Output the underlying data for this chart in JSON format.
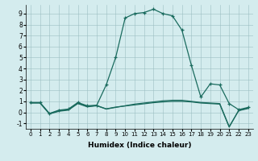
{
  "xlabel": "Humidex (Indice chaleur)",
  "background_color": "#d4ecee",
  "line_color": "#1a6b5e",
  "xlim": [
    -0.5,
    23.5
  ],
  "ylim": [
    -1.5,
    9.8
  ],
  "xticks": [
    0,
    1,
    2,
    3,
    4,
    5,
    6,
    7,
    8,
    9,
    10,
    11,
    12,
    13,
    14,
    15,
    16,
    17,
    18,
    19,
    20,
    21,
    22,
    23
  ],
  "yticks": [
    -1,
    0,
    1,
    2,
    3,
    4,
    5,
    6,
    7,
    8,
    9
  ],
  "curve1_x": [
    0,
    1,
    2,
    3,
    4,
    5,
    6,
    7,
    8,
    9,
    10,
    11,
    12,
    13,
    14,
    15,
    16,
    17,
    18,
    19,
    20,
    21,
    22,
    23
  ],
  "curve1_y": [
    0.9,
    0.9,
    -0.1,
    0.2,
    0.3,
    0.9,
    0.6,
    0.65,
    2.5,
    5.0,
    8.6,
    9.0,
    9.1,
    9.4,
    9.0,
    8.8,
    7.5,
    4.3,
    1.4,
    2.6,
    2.5,
    0.8,
    0.25,
    0.45
  ],
  "curve2_x": [
    0,
    1,
    2,
    3,
    4,
    5,
    6,
    7,
    8,
    9,
    10,
    11,
    12,
    13,
    14,
    15,
    16,
    17,
    18,
    19,
    20,
    21,
    22,
    23
  ],
  "curve2_y": [
    0.85,
    0.85,
    -0.15,
    0.1,
    0.2,
    0.8,
    0.5,
    0.6,
    0.3,
    0.45,
    0.6,
    0.75,
    0.85,
    0.95,
    1.05,
    1.1,
    1.1,
    1.0,
    0.9,
    0.85,
    0.8,
    -1.3,
    0.15,
    0.35
  ],
  "curve3_x": [
    0,
    1,
    2,
    3,
    4,
    5,
    6,
    7,
    8,
    9,
    10,
    11,
    12,
    13,
    14,
    15,
    16,
    17,
    18,
    19,
    20,
    21,
    22,
    23
  ],
  "curve3_y": [
    0.87,
    0.87,
    -0.12,
    0.15,
    0.25,
    0.85,
    0.55,
    0.62,
    0.32,
    0.48,
    0.58,
    0.68,
    0.78,
    0.88,
    0.95,
    1.0,
    1.0,
    0.95,
    0.85,
    0.8,
    0.75,
    -1.35,
    0.18,
    0.4
  ]
}
